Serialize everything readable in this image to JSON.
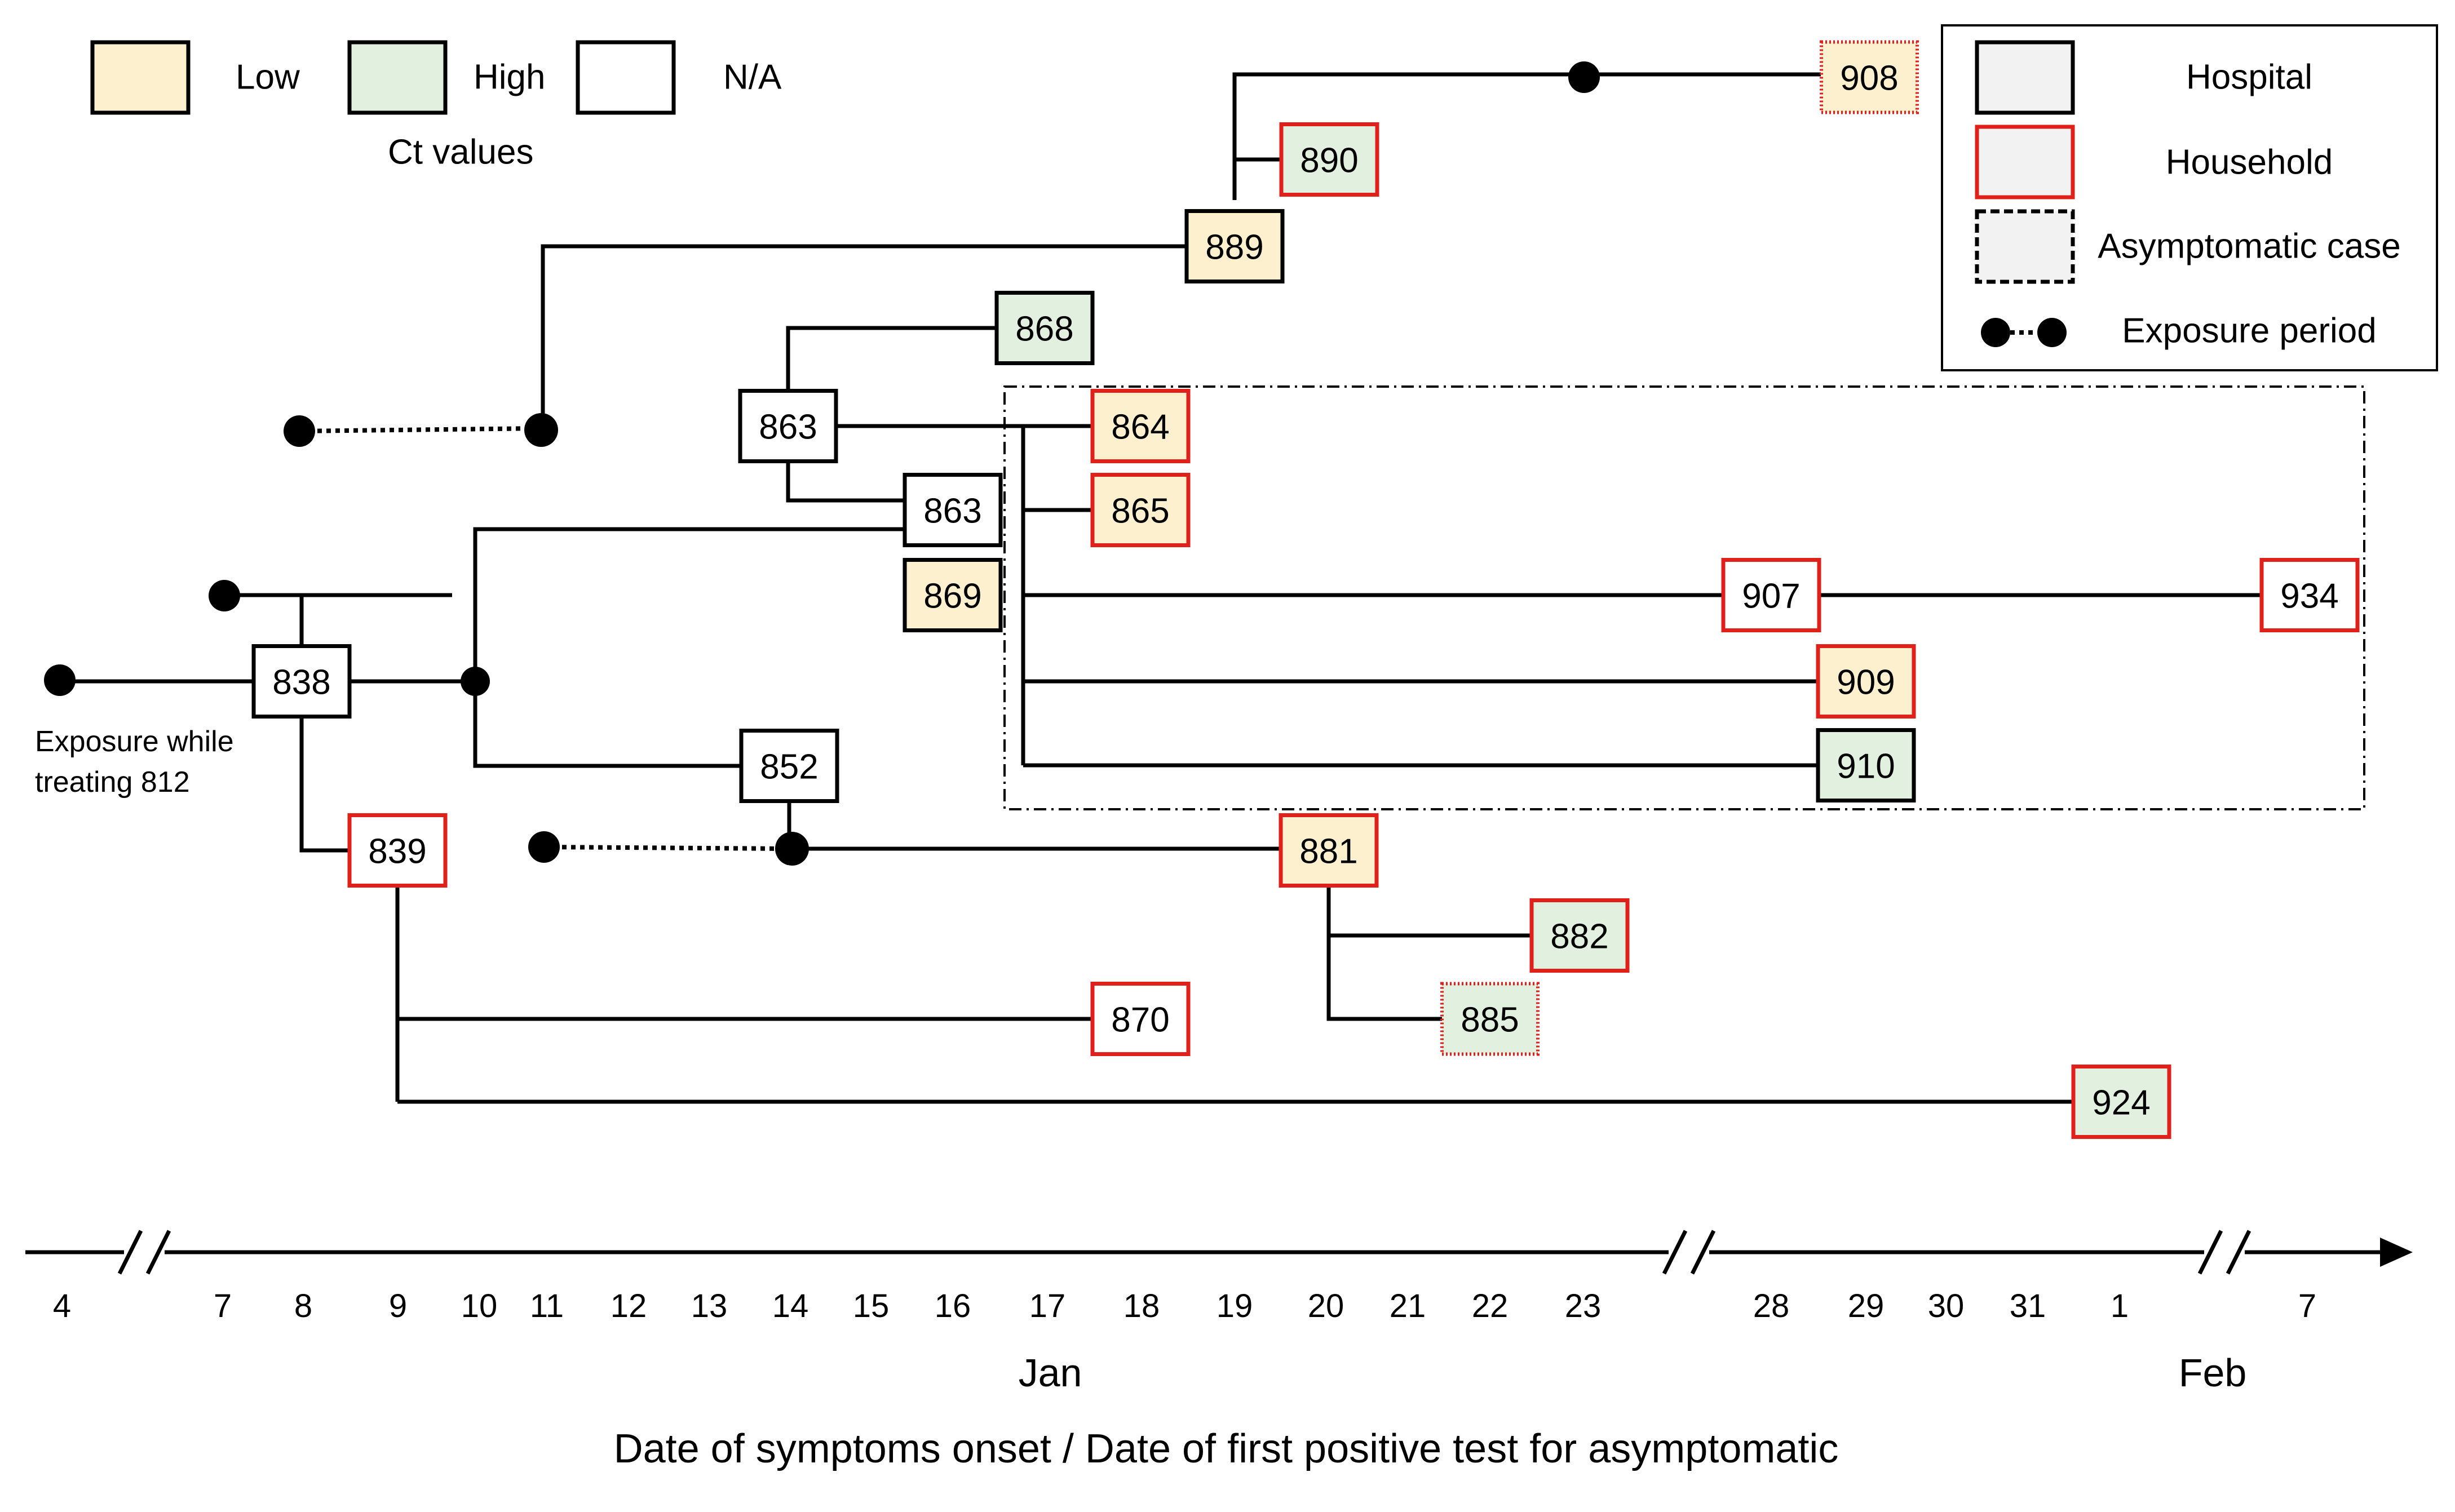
{
  "colors": {
    "low": "#fdf0cf",
    "high": "#e2f0df",
    "na": "#ffffff",
    "hospital_border": "#000000",
    "household_border": "#e0201b",
    "legend_fill": "#f2f2f2",
    "line": "#000000"
  },
  "ct_legend": {
    "caption": "Ct values",
    "items": [
      {
        "key": "low",
        "label": "Low"
      },
      {
        "key": "high",
        "label": "High"
      },
      {
        "key": "na",
        "label": "N/A"
      }
    ]
  },
  "setting_legend": {
    "hospital": "Hospital",
    "household": "Household",
    "asymptomatic": "Asymptomatic case",
    "exposure": "Exposure period"
  },
  "axis": {
    "ticks": [
      "4",
      "7",
      "8",
      "9",
      "10",
      "11",
      "12",
      "13",
      "14",
      "15",
      "16",
      "17",
      "18",
      "19",
      "20",
      "21",
      "22",
      "23",
      "28",
      "29",
      "30",
      "31",
      "1",
      "7"
    ],
    "months": [
      "Jan",
      "Feb"
    ],
    "title": "Date of symptoms onset / Date of first positive test for asymptomatic"
  },
  "annotation": {
    "line1": "Exposure while",
    "line2": "treating 812"
  },
  "cases": [
    {
      "id": "908",
      "ct": "low",
      "setting": "household",
      "asymptomatic": true
    },
    {
      "id": "890",
      "ct": "high",
      "setting": "household",
      "asymptomatic": false
    },
    {
      "id": "889",
      "ct": "low",
      "setting": "hospital",
      "asymptomatic": false
    },
    {
      "id": "868",
      "ct": "high",
      "setting": "hospital",
      "asymptomatic": false
    },
    {
      "id": "863",
      "ct": "na",
      "setting": "hospital",
      "asymptomatic": false
    },
    {
      "id": "864",
      "ct": "low",
      "setting": "household",
      "asymptomatic": false
    },
    {
      "id": "863",
      "ct": "na",
      "setting": "hospital",
      "asymptomatic": false
    },
    {
      "id": "865",
      "ct": "low",
      "setting": "household",
      "asymptomatic": false
    },
    {
      "id": "869",
      "ct": "low",
      "setting": "hospital",
      "asymptomatic": false
    },
    {
      "id": "907",
      "ct": "na",
      "setting": "household",
      "asymptomatic": false
    },
    {
      "id": "934",
      "ct": "na",
      "setting": "household",
      "asymptomatic": false
    },
    {
      "id": "838",
      "ct": "na",
      "setting": "hospital",
      "asymptomatic": false
    },
    {
      "id": "909",
      "ct": "low",
      "setting": "household",
      "asymptomatic": false
    },
    {
      "id": "852",
      "ct": "na",
      "setting": "hospital",
      "asymptomatic": false
    },
    {
      "id": "910",
      "ct": "high",
      "setting": "hospital",
      "asymptomatic": false
    },
    {
      "id": "839",
      "ct": "na",
      "setting": "household",
      "asymptomatic": false
    },
    {
      "id": "881",
      "ct": "low",
      "setting": "household",
      "asymptomatic": false
    },
    {
      "id": "882",
      "ct": "high",
      "setting": "household",
      "asymptomatic": false
    },
    {
      "id": "870",
      "ct": "na",
      "setting": "household",
      "asymptomatic": false
    },
    {
      "id": "885",
      "ct": "high",
      "setting": "household",
      "asymptomatic": true
    },
    {
      "id": "924",
      "ct": "high",
      "setting": "household",
      "asymptomatic": false
    }
  ]
}
